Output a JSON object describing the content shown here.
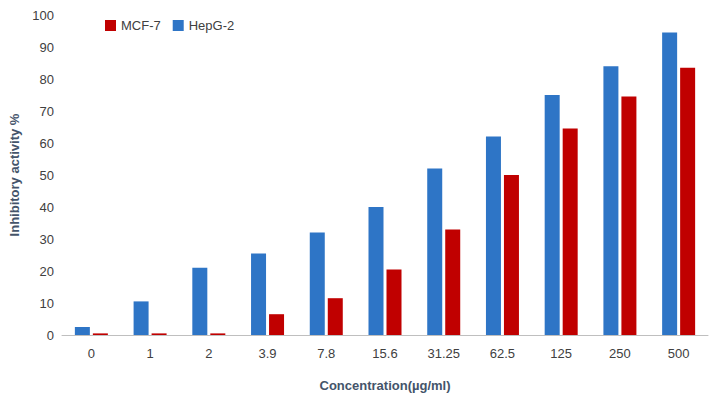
{
  "chart_data": {
    "type": "bar",
    "x_label": "Concentration(µg/ml)",
    "y_label": "Inhibitory activity %",
    "categories": [
      "0",
      "1",
      "2",
      "3.9",
      "7.8",
      "15.6",
      "31.25",
      "62.5",
      "125",
      "250",
      "500"
    ],
    "series": [
      {
        "name": "HepG-2",
        "color": "#2e75c6",
        "values": [
          2.5,
          10.5,
          21,
          25.5,
          32,
          40,
          52,
          62,
          75,
          84,
          94.5
        ]
      },
      {
        "name": "MCF-7",
        "color": "#c00000",
        "values": [
          0.5,
          0.5,
          0.5,
          6.5,
          11.5,
          20.5,
          33,
          50,
          64.5,
          74.5,
          83.5
        ]
      }
    ],
    "ylim": [
      0,
      100
    ],
    "yticks": [
      0,
      10,
      20,
      30,
      40,
      50,
      60,
      70,
      80,
      90,
      100
    ],
    "grid": false,
    "legend": "top-left"
  }
}
